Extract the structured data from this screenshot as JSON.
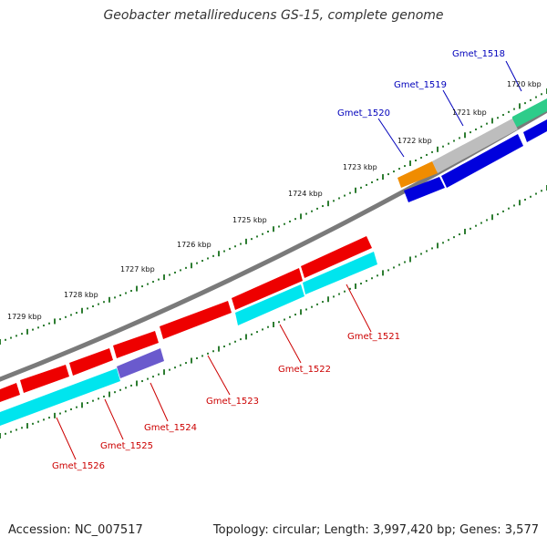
{
  "title": "Geobacter metallireducens GS-15, complete genome",
  "accession": "Accession: NC_007517",
  "summary": "Topology: circular; Length: 3,997,420 bp; Genes: 3,577",
  "colors": {
    "forward_label": "#0000bb",
    "reverse_label": "#cc0000",
    "backbone": "#777777",
    "ticks": "#2e7d32"
  },
  "kbp_ticks": [
    "1729 kbp",
    "1728 kbp",
    "1727 kbp",
    "1726 kbp",
    "1725 kbp",
    "1724 kbp",
    "1723 kbp",
    "1722 kbp",
    "1721 kbp",
    "1720 kbp"
  ],
  "forward_labels": [
    "Gmet_1518",
    "Gmet_1519",
    "Gmet_1520"
  ],
  "reverse_labels": [
    "Gmet_1521",
    "Gmet_1522",
    "Gmet_1523",
    "Gmet_1524",
    "Gmet_1525",
    "Gmet_1526"
  ]
}
